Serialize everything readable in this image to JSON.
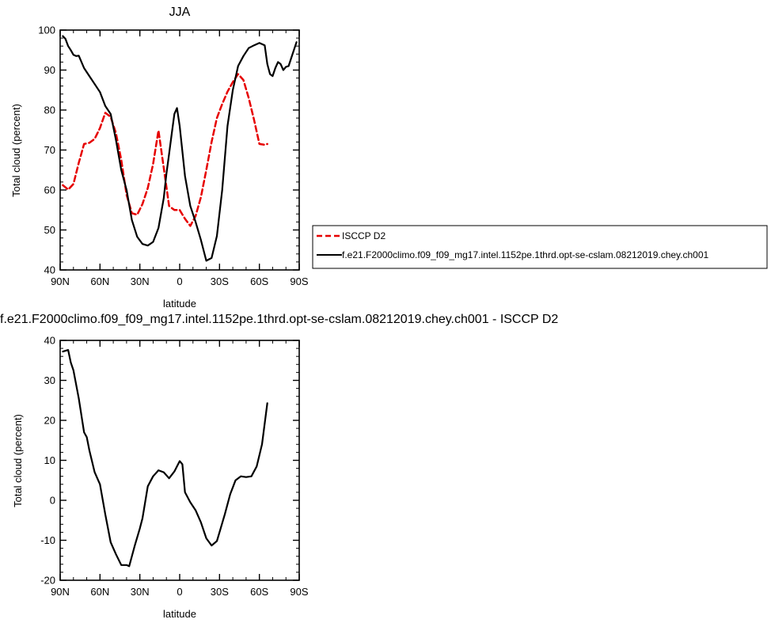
{
  "chart_data": [
    {
      "type": "line",
      "title": "JJA",
      "xlabel": "latitude",
      "ylabel": "Total cloud (percent)",
      "xlim": [
        90,
        -90
      ],
      "ylim": [
        40,
        100
      ],
      "xticks": [
        90,
        60,
        30,
        0,
        -30,
        -60,
        -90
      ],
      "xtick_labels": [
        "90N",
        "60N",
        "30N",
        "0",
        "30S",
        "60S",
        "90S"
      ],
      "yticks": [
        40,
        50,
        60,
        70,
        80,
        90,
        100
      ],
      "ytick_labels": [
        "40",
        "50",
        "60",
        "70",
        "80",
        "90",
        "100"
      ],
      "legend_position": "right",
      "series": [
        {
          "name": "ISCCP D2",
          "color": "#e60000",
          "dash": "dashed",
          "x": [
            88,
            84,
            80,
            76,
            72,
            68,
            64,
            60,
            56,
            52,
            48,
            44,
            40,
            36,
            32,
            28,
            24,
            20,
            16,
            12,
            8,
            4,
            0,
            -4,
            -8,
            -12,
            -16,
            -20,
            -24,
            -28,
            -32,
            -36,
            -40,
            -44,
            -48,
            -52,
            -56,
            -60,
            -64,
            -66
          ],
          "y": [
            61.2,
            60.1,
            61.5,
            66.8,
            71.5,
            71.8,
            72.8,
            75.5,
            79.3,
            78.3,
            74.2,
            67.5,
            58.8,
            54.2,
            53.8,
            56.5,
            60.5,
            66.5,
            74.9,
            65.5,
            56.0,
            55.0,
            55.0,
            52.8,
            51.0,
            53.5,
            58.2,
            65.0,
            72.0,
            78.0,
            81.5,
            84.6,
            87.0,
            89.0,
            87.5,
            83.0,
            77.5,
            71.5,
            71.3,
            71.5
          ]
        },
        {
          "name": "f.e21.F2000climo.f09_f09_mg17.intel.1152pe.1thrd.opt-se-cslam.08212019.chey.ch001",
          "color": "#000000",
          "dash": "solid",
          "x": [
            88,
            86,
            84,
            82,
            80,
            78,
            76,
            72,
            68,
            64,
            60,
            56,
            52,
            48,
            44,
            40,
            36,
            32,
            28,
            24,
            20,
            16,
            12,
            10,
            8,
            6,
            4,
            2,
            0,
            -4,
            -8,
            -12,
            -16,
            -20,
            -24,
            -28,
            -32,
            -36,
            -40,
            -44,
            -48,
            -52,
            -56,
            -60,
            -64,
            -66,
            -68,
            -70,
            -72,
            -74,
            -76,
            -78,
            -80,
            -82,
            -84,
            -88
          ],
          "y": [
            98.5,
            97.8,
            96.0,
            95.0,
            93.8,
            93.5,
            93.6,
            90.5,
            88.5,
            86.5,
            84.5,
            81.0,
            79.0,
            72.5,
            65.0,
            60.0,
            52.5,
            48.3,
            46.5,
            46.1,
            47.0,
            50.5,
            58.0,
            64.0,
            69.0,
            74.0,
            79.0,
            80.5,
            76.0,
            63.5,
            56.0,
            52.0,
            47.5,
            42.3,
            43.0,
            48.5,
            60.0,
            76.0,
            85.0,
            91.0,
            93.5,
            95.5,
            96.2,
            96.8,
            96.2,
            91.5,
            89.0,
            88.5,
            90.5,
            92.0,
            91.5,
            90.0,
            90.8,
            91.0,
            93.0,
            97.0
          ]
        }
      ]
    },
    {
      "type": "line",
      "title": "f.e21.F2000climo.f09_f09_mg17.intel.1152pe.1thrd.opt-se-cslam.08212019.chey.ch001 - ISCCP D2",
      "xlabel": "latitude",
      "ylabel": "Total cloud (percent)",
      "xlim": [
        90,
        -90
      ],
      "ylim": [
        -20,
        40
      ],
      "xticks": [
        90,
        60,
        30,
        0,
        -30,
        -60,
        -90
      ],
      "xtick_labels": [
        "90N",
        "60N",
        "30N",
        "0",
        "30S",
        "60S",
        "90S"
      ],
      "yticks": [
        -20,
        -10,
        0,
        10,
        20,
        30,
        40
      ],
      "ytick_labels": [
        "-20",
        "-10",
        "0",
        "10",
        "20",
        "30",
        "40"
      ],
      "series": [
        {
          "color": "#000000",
          "dash": "solid",
          "x": [
            88,
            84,
            82,
            80,
            76,
            72,
            70,
            68,
            64,
            60,
            56,
            52,
            48,
            44,
            40,
            38,
            34,
            30,
            28,
            24,
            20,
            16,
            12,
            8,
            4,
            0,
            -2,
            -4,
            -8,
            -12,
            -16,
            -20,
            -24,
            -28,
            -30,
            -34,
            -38,
            -42,
            -46,
            -50,
            -54,
            -58,
            -62,
            -66
          ],
          "y": [
            37.2,
            37.6,
            34.5,
            32.5,
            25.5,
            17.0,
            15.8,
            12.5,
            7.0,
            4.0,
            -3.5,
            -10.5,
            -13.5,
            -16.2,
            -16.2,
            -16.5,
            -11.5,
            -7.0,
            -4.5,
            3.5,
            6.0,
            7.5,
            7.0,
            5.5,
            7.2,
            9.8,
            9.0,
            2.0,
            -0.5,
            -2.5,
            -5.5,
            -9.5,
            -11.3,
            -10.2,
            -8.0,
            -3.5,
            1.5,
            5.0,
            6.0,
            5.8,
            6.0,
            8.5,
            14.0,
            24.3
          ]
        }
      ]
    }
  ]
}
